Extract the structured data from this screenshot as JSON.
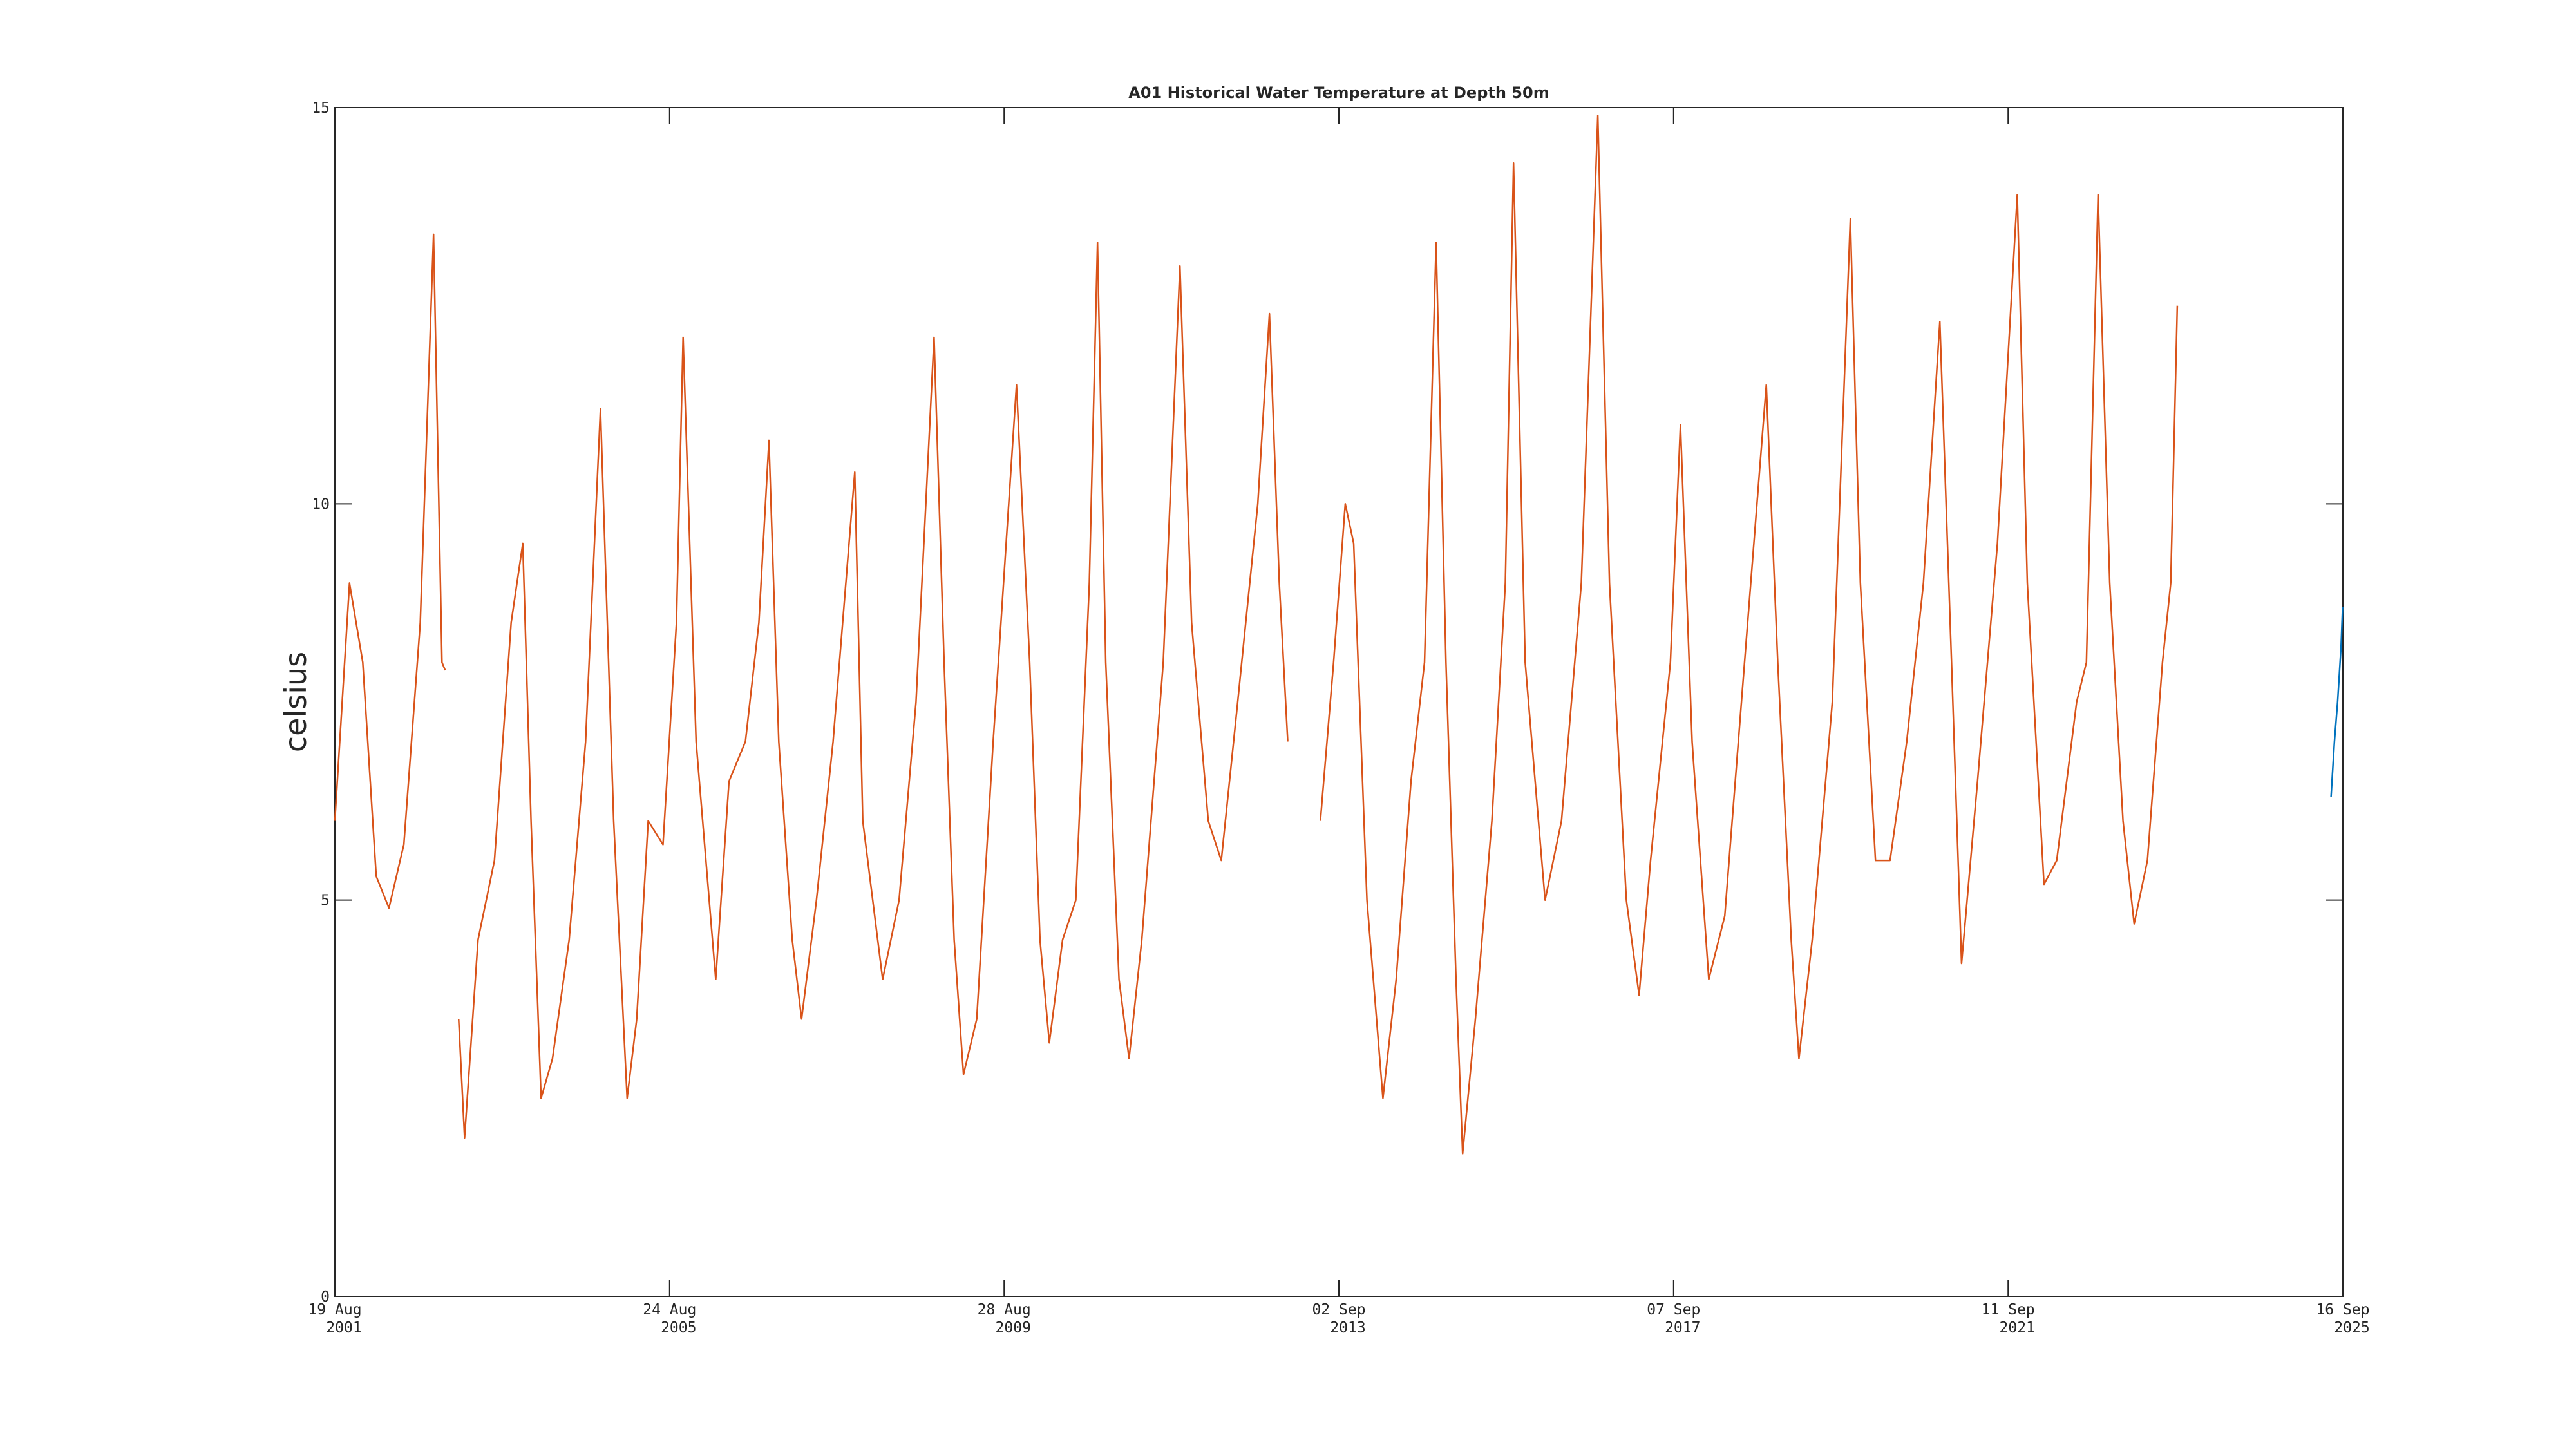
{
  "chart_data": {
    "type": "line",
    "title": "A01 Historical Water Temperature at Depth 50m",
    "y_label": "celsius",
    "xlim": [
      "2001-08-19",
      "2025-09-16"
    ],
    "xticks": [
      {
        "value": "2001-08-19",
        "label": [
          "19 Aug",
          "2001"
        ]
      },
      {
        "value": "2005-08-24",
        "label": [
          "24 Aug",
          "2005"
        ]
      },
      {
        "value": "2009-08-28",
        "label": [
          "28 Aug",
          "2009"
        ]
      },
      {
        "value": "2013-09-02",
        "label": [
          "02 Sep",
          "2013"
        ]
      },
      {
        "value": "2017-09-07",
        "label": [
          "07 Sep",
          "2017"
        ]
      },
      {
        "value": "2021-09-11",
        "label": [
          "11 Sep",
          "2021"
        ]
      },
      {
        "value": "2025-09-16",
        "label": [
          "16 Sep",
          "2025"
        ]
      }
    ],
    "ylim": [
      0,
      15
    ],
    "yticks": [
      0,
      5,
      10,
      15
    ],
    "series": [
      {
        "color": "#d95319",
        "x": [
          "2001-08-19",
          "2001-10-22",
          "2001-12-19",
          "2002-02-16",
          "2002-04-13",
          "2002-06-17",
          "2002-08-28",
          "2002-10-25",
          "2002-12-01",
          "2002-12-15",
          "2003-01-15",
          "2003-02-12",
          "2003-03-10",
          "2003-05-08",
          "2003-07-19",
          "2003-09-30",
          "2003-11-20",
          "2003-12-26",
          "2004-02-08",
          "2004-03-29",
          "2004-06-10",
          "2004-08-21",
          "2004-10-25",
          "2004-12-22",
          "2005-02-19",
          "2005-04-02",
          "2005-05-22",
          "2005-07-26",
          "2005-09-23",
          "2005-10-22",
          "2005-12-18",
          "2006-03-14",
          "2006-05-11",
          "2006-07-22",
          "2006-09-19",
          "2006-11-02",
          "2006-12-15",
          "2007-02-12",
          "2007-03-25",
          "2007-05-29",
          "2007-08-10",
          "2007-11-13",
          "2007-12-18",
          "2008-03-14",
          "2008-05-25",
          "2008-08-07",
          "2008-10-25",
          "2008-12-08",
          "2009-01-21",
          "2009-03-03",
          "2009-04-30",
          "2009-07-11",
          "2009-10-21",
          "2009-12-18",
          "2010-02-01",
          "2010-03-14",
          "2010-05-11",
          "2010-07-08",
          "2010-09-05",
          "2010-10-11",
          "2010-11-16",
          "2011-01-13",
          "2011-02-26",
          "2011-04-23",
          "2011-07-26",
          "2011-10-07",
          "2011-11-27",
          "2012-02-08",
          "2012-04-05",
          "2012-06-16",
          "2012-09-12",
          "2012-11-02",
          "2012-12-15",
          "2013-01-21",
          "2013-04-01",
          "2013-06-13",
          "2013-08-10",
          "2013-09-30",
          "2013-11-06",
          "2014-01-03",
          "2014-03-14",
          "2014-05-11",
          "2014-07-15",
          "2014-09-12",
          "2014-11-02",
          "2014-12-15",
          "2015-01-28",
          "2015-02-26",
          "2015-04-23",
          "2015-07-04",
          "2015-09-01",
          "2015-10-07",
          "2015-11-27",
          "2016-02-22",
          "2016-05-04",
          "2016-07-30",
          "2016-10-10",
          "2016-11-30",
          "2017-02-12",
          "2017-04-09",
          "2017-05-29",
          "2017-08-24",
          "2017-10-07",
          "2017-11-27",
          "2018-02-08",
          "2018-04-19",
          "2018-07-01",
          "2018-10-18",
          "2018-12-07",
          "2019-02-04",
          "2019-03-10",
          "2019-05-07",
          "2019-08-03",
          "2019-10-21",
          "2019-12-04",
          "2020-02-08",
          "2020-04-12",
          "2020-06-24",
          "2020-09-05",
          "2020-11-16",
          "2021-01-06",
          "2021-02-19",
          "2021-04-30",
          "2021-07-26",
          "2021-10-21",
          "2021-12-04",
          "2022-02-15",
          "2022-04-12",
          "2022-07-08",
          "2022-08-20",
          "2022-10-10",
          "2022-11-30",
          "2023-01-27",
          "2023-03-17",
          "2023-05-14",
          "2023-07-19",
          "2023-08-24",
          "2023-09-22"
        ],
        "values": [
          6,
          9,
          8,
          5.3,
          4.9,
          5.7,
          8.5,
          13.4,
          8,
          7.9,
          null,
          3.5,
          2,
          4.5,
          5.5,
          8.5,
          9.5,
          6,
          2.5,
          3,
          4.5,
          7,
          11.2,
          6,
          2.5,
          3.5,
          6,
          5.7,
          8.5,
          12.1,
          7,
          4,
          6.5,
          7,
          8.5,
          10.8,
          7,
          4.5,
          3.5,
          5,
          7,
          10.4,
          6,
          4,
          5,
          7.5,
          12.1,
          8,
          4.5,
          2.8,
          3.5,
          7,
          11.5,
          8,
          4.5,
          3.2,
          4.5,
          5,
          9,
          13.3,
          8,
          4,
          3,
          4.5,
          8,
          13,
          8.5,
          6,
          5.5,
          7.5,
          10,
          12.4,
          9,
          7,
          null,
          6,
          8,
          10,
          9.5,
          5,
          2.5,
          4,
          6.5,
          8,
          13.3,
          8,
          4,
          1.8,
          3.5,
          6,
          9,
          14.3,
          8,
          5,
          6,
          9,
          14.9,
          9,
          5,
          3.8,
          5.5,
          8,
          11,
          7,
          4,
          4.8,
          7.5,
          11.5,
          8,
          4.5,
          3,
          4.5,
          7.5,
          13.6,
          9,
          5.5,
          5.5,
          7,
          9,
          12.3,
          8,
          4.2,
          6.5,
          9.5,
          13.9,
          9,
          5.2,
          5.5,
          7.5,
          8,
          13.9,
          9,
          6,
          4.7,
          5.5,
          8,
          9,
          12.5
        ]
      },
      {
        "color": "#0072bd",
        "x": [
          "2025-07-26",
          "2025-08-10",
          "2025-08-24",
          "2025-09-08",
          "2025-09-15"
        ],
        "values": [
          6.3,
          7,
          7.5,
          8.2,
          8.7
        ]
      }
    ]
  }
}
